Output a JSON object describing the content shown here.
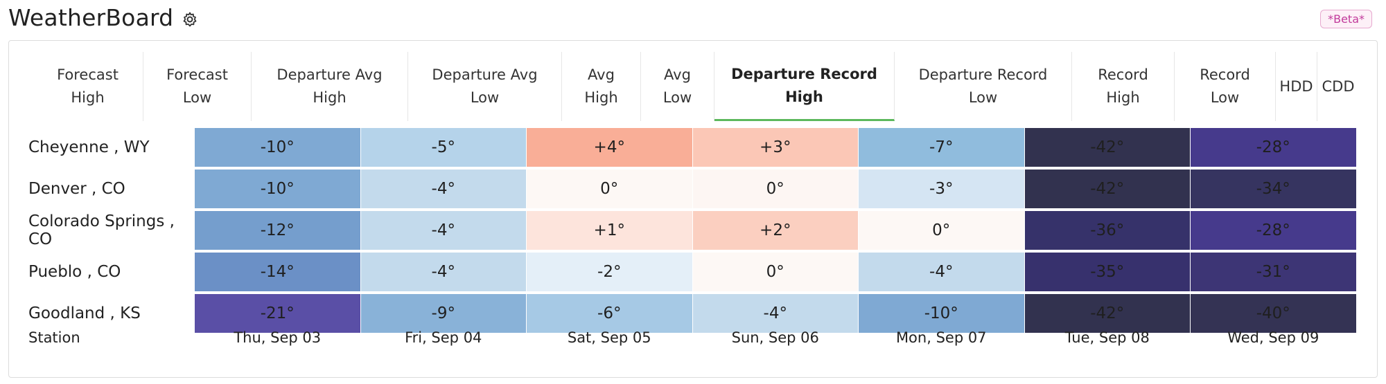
{
  "app": {
    "title": "WeatherBoard",
    "badge": "*Beta*"
  },
  "tabs": [
    {
      "label": "Forecast\nHigh",
      "active": false
    },
    {
      "label": "Forecast\nLow",
      "active": false
    },
    {
      "label": "Departure Avg\nHigh",
      "active": false
    },
    {
      "label": "Departure Avg\nLow",
      "active": false
    },
    {
      "label": "Avg\nHigh",
      "active": false
    },
    {
      "label": "Avg\nLow",
      "active": false
    },
    {
      "label": "Departure Record\nHigh",
      "active": true
    },
    {
      "label": "Departure Record\nLow",
      "active": false
    },
    {
      "label": "Record\nHigh",
      "active": false
    },
    {
      "label": "Record\nLow",
      "active": false
    },
    {
      "label": "HDD",
      "active": false
    },
    {
      "label": "CDD",
      "active": false
    }
  ],
  "table": {
    "station_header": "Station",
    "dates": [
      "Thu, Sep 03",
      "Fri, Sep 04",
      "Sat, Sep 05",
      "Sun, Sep 06",
      "Mon, Sep 07",
      "Tue, Sep 08",
      "Wed, Sep 09"
    ],
    "rows": [
      {
        "station": "Cheyenne , WY",
        "values": [
          "-10°",
          "-5°",
          "+4°",
          "+3°",
          "-7°",
          "-42°",
          "-28°"
        ],
        "colors": [
          "#7fa9d3",
          "#b5d3ea",
          "#f9ae97",
          "#fbc7b6",
          "#90bcdd",
          "#32324f",
          "#463a8c"
        ]
      },
      {
        "station": "Denver , CO",
        "values": [
          "-10°",
          "-4°",
          "0°",
          "0°",
          "-3°",
          "-42°",
          "-34°"
        ],
        "colors": [
          "#7fa9d3",
          "#c3daec",
          "#fdf8f5",
          "#fdf6f3",
          "#d5e5f3",
          "#32324f",
          "#363460"
        ]
      },
      {
        "station": "Colorado Springs , CO",
        "values": [
          "-12°",
          "-4°",
          "+1°",
          "+2°",
          "0°",
          "-36°",
          "-28°"
        ],
        "colors": [
          "#759ecd",
          "#c3daec",
          "#fde4dc",
          "#fbcfc0",
          "#fdf8f5",
          "#36326a",
          "#463a8c"
        ]
      },
      {
        "station": "Pueblo , CO",
        "values": [
          "-14°",
          "-4°",
          "-2°",
          "0°",
          "-4°",
          "-35°",
          "-31°"
        ],
        "colors": [
          "#6b90c6",
          "#c3daec",
          "#e4eff8",
          "#fdf8f5",
          "#c3daec",
          "#37316d",
          "#3d3575"
        ]
      },
      {
        "station": "Goodland , KS",
        "values": [
          "-21°",
          "-9°",
          "-6°",
          "-4°",
          "-10°",
          "-42°",
          "-40°"
        ],
        "colors": [
          "#5a4fa6",
          "#89b2d8",
          "#a6c9e5",
          "#c3daec",
          "#7fa9d3",
          "#32324f",
          "#343354"
        ]
      }
    ]
  }
}
